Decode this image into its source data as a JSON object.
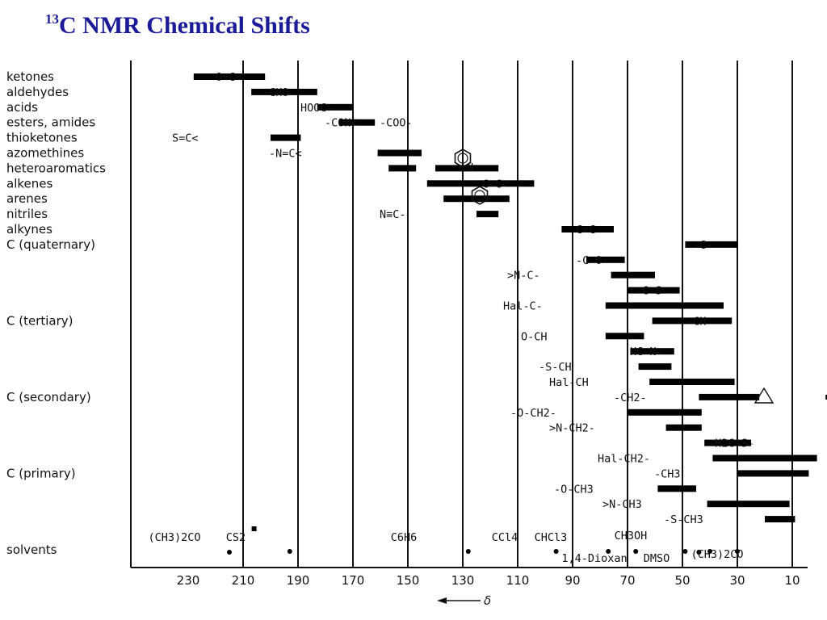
{
  "title_sup": "13",
  "title_main": "C NMR Chemical Shifts",
  "chart_data": {
    "type": "bar",
    "subtype": "range",
    "title": "13C NMR Chemical Shifts",
    "xlabel": "δ",
    "xlim": [
      230,
      -10
    ],
    "x_direction": "decreasing",
    "ticks": [
      230,
      210,
      190,
      170,
      150,
      130,
      110,
      90,
      70,
      50,
      30,
      10
    ],
    "tick_labels": [
      "230",
      "210",
      "190",
      "170",
      "150",
      "130",
      "110",
      "90",
      "70",
      "50",
      "30",
      "10"
    ],
    "gridlines": [
      210,
      190,
      170,
      150,
      130,
      110,
      90,
      70,
      50,
      30,
      10
    ],
    "row_labels": [
      {
        "text": "ketones",
        "row": 0
      },
      {
        "text": "aldehydes",
        "row": 1
      },
      {
        "text": "acids",
        "row": 2
      },
      {
        "text": "esters, amides",
        "row": 3
      },
      {
        "text": "thioketones",
        "row": 4
      },
      {
        "text": "azomethines",
        "row": 5
      },
      {
        "text": "heteroaromatics",
        "row": 6
      },
      {
        "text": "alkenes",
        "row": 7
      },
      {
        "text": "arenes",
        "row": 8
      },
      {
        "text": "nitriles",
        "row": 9
      },
      {
        "text": "alkynes",
        "row": 10
      },
      {
        "text": "C (quaternary)",
        "row": 11
      },
      {
        "text": "C (tertiary)",
        "row": 16
      },
      {
        "text": "C (secondary)",
        "row": 21
      },
      {
        "text": "C (primary)",
        "row": 26
      },
      {
        "text": "solvents",
        "row": 31
      }
    ],
    "ranges": [
      {
        "row": 0,
        "from": 228,
        "to": 202,
        "label": "O=C<"
      },
      {
        "row": 1,
        "from": 207,
        "to": 183,
        "label": "-CHO"
      },
      {
        "row": 2,
        "from": 183,
        "to": 170,
        "label": "HOOC-"
      },
      {
        "row": 3,
        "from": 175,
        "to": 162,
        "label": "-CON<  -COO-"
      },
      {
        "row": 4,
        "from": 200,
        "to": 189,
        "label": "S=C<"
      },
      {
        "row": 5,
        "from": 161,
        "to": 145,
        "label": "-N=C<"
      },
      {
        "row": 6,
        "from": 157,
        "to": 147,
        "label": ""
      },
      {
        "row": 6,
        "from": 140,
        "to": 117,
        "label": "pyridine"
      },
      {
        "row": 7,
        "from": 143,
        "to": 104,
        "label": ">C=C<"
      },
      {
        "row": 8,
        "from": 137,
        "to": 113,
        "label": "benzene"
      },
      {
        "row": 9,
        "from": 125,
        "to": 117,
        "label": "N≡C-"
      },
      {
        "row": 10,
        "from": 94,
        "to": 75,
        "label": "-C≡C-"
      },
      {
        "row": 11,
        "from": 49,
        "to": 30,
        "label": "-C-"
      },
      {
        "row": 12,
        "from": 85,
        "to": 71,
        "label": "-C-O-"
      },
      {
        "row": 13,
        "from": 76,
        "to": 60,
        "label": ">N-C-"
      },
      {
        "row": 14,
        "from": 70,
        "to": 51,
        "label": "-C-S-"
      },
      {
        "row": 15,
        "from": 78,
        "to": 35,
        "label": "Hal-C-"
      },
      {
        "row": 16,
        "from": 61,
        "to": 32,
        "label": "-CH"
      },
      {
        "row": 17,
        "from": 78,
        "to": 64,
        "label": "O-CH"
      },
      {
        "row": 18,
        "from": 69,
        "to": 53,
        "label": "HC-N<"
      },
      {
        "row": 19,
        "from": 66,
        "to": 54,
        "label": "-S-CH"
      },
      {
        "row": 20,
        "from": 62,
        "to": 31,
        "label": "Hal-CH"
      },
      {
        "row": 21,
        "from": 44,
        "to": 22,
        "label": "-CH2-"
      },
      {
        "row": 22,
        "from": 70,
        "to": 43,
        "label": "-O-CH2-"
      },
      {
        "row": 23,
        "from": 56,
        "to": 43,
        "label": ">N-CH2-"
      },
      {
        "row": 24,
        "from": 42,
        "to": 25,
        "label": "-H2C-S-"
      },
      {
        "row": 25,
        "from": 39,
        "to": 1,
        "label": "Hal-CH2-"
      },
      {
        "row": 26,
        "from": 30,
        "to": 4,
        "label": "-CH3"
      },
      {
        "row": 27,
        "from": 59,
        "to": 45,
        "label": "-O-CH3"
      },
      {
        "row": 28,
        "from": 41,
        "to": 11,
        "label": ">N-CH3"
      },
      {
        "row": 29,
        "from": 20,
        "to": 9,
        "label": "-S-CH3"
      }
    ],
    "points": [
      {
        "row": 21,
        "value": -3,
        "label": "cyclopropane"
      }
    ],
    "solvents": [
      {
        "name": "(CH3)2CO",
        "value": 206,
        "mark": "square"
      },
      {
        "name": "(CH3)2CO",
        "value": 30,
        "mark": "dot"
      },
      {
        "name": "CS2",
        "value": 193,
        "mark": "dot"
      },
      {
        "name": "C6H6",
        "value": 128,
        "mark": "dot"
      },
      {
        "name": "CCl4",
        "value": 96,
        "mark": "dot"
      },
      {
        "name": "CHCl3",
        "value": 77,
        "mark": "dot"
      },
      {
        "name": "CH3OH",
        "value": 49,
        "mark": "dot"
      },
      {
        "name": "1,4-Dioxan",
        "value": 67,
        "mark": "dot"
      },
      {
        "name": "DMSO",
        "value": 40,
        "mark": "dot"
      }
    ],
    "extra_dots": [
      215,
      44
    ],
    "grid": true
  }
}
